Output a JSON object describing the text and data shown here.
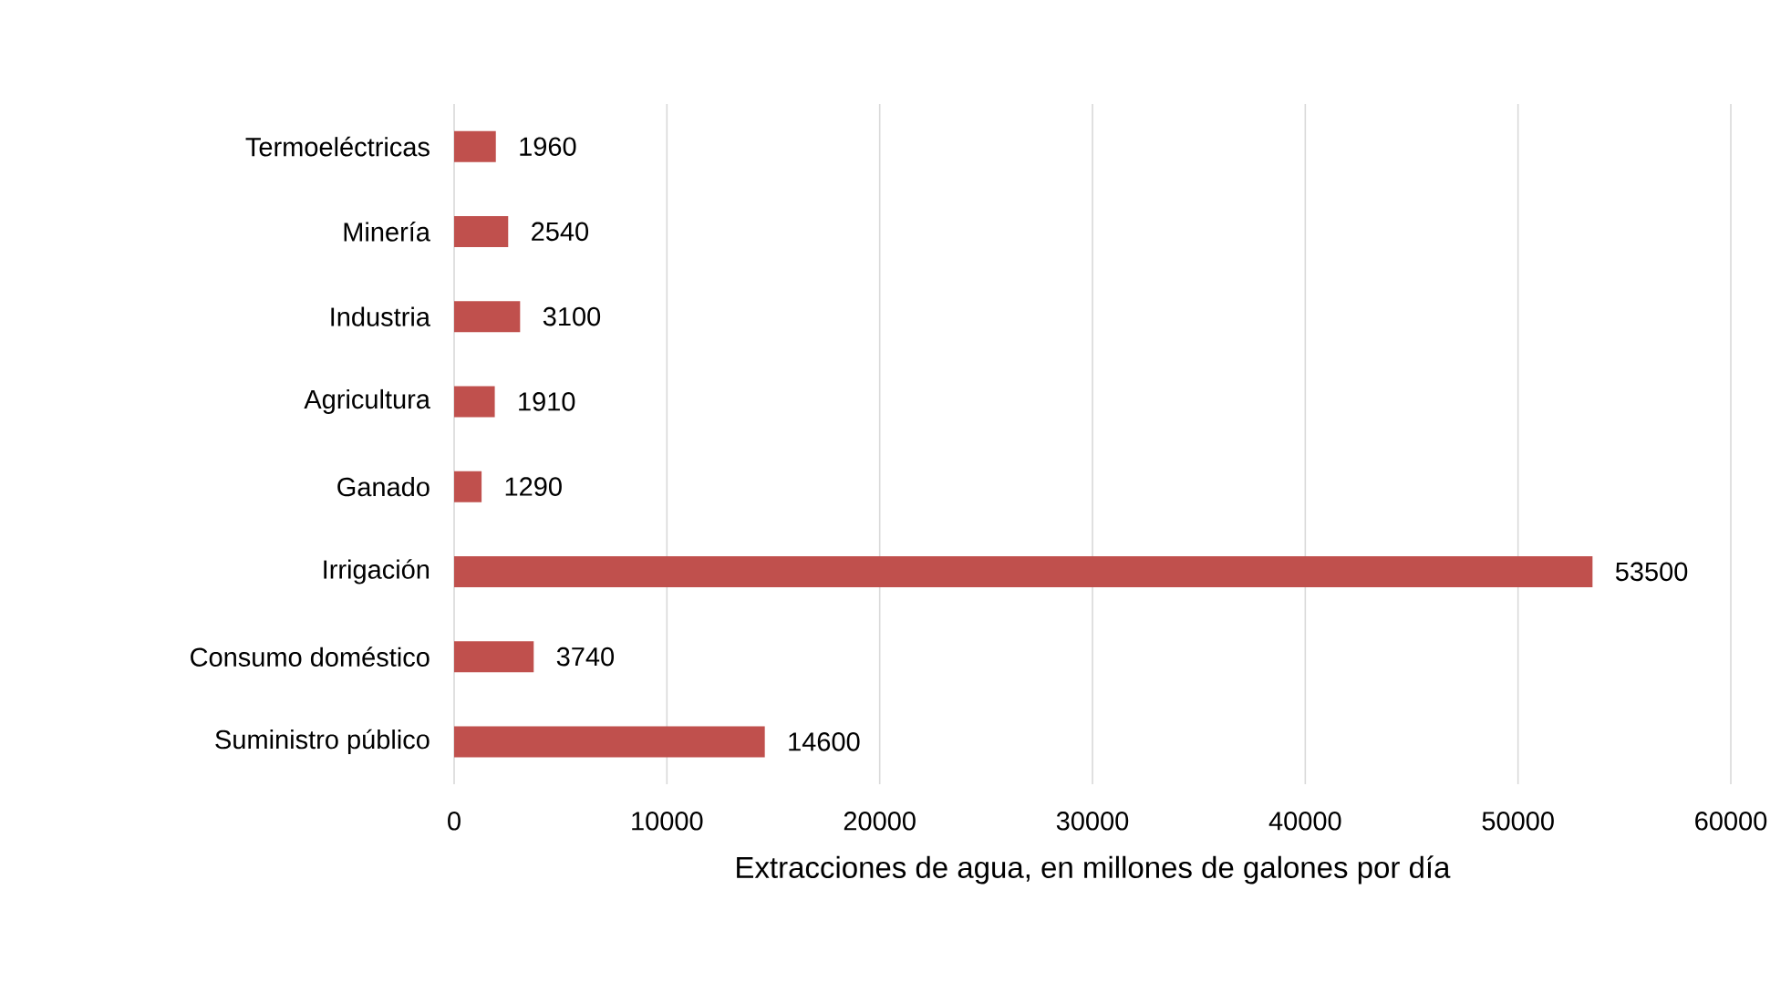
{
  "chart_data": {
    "type": "bar",
    "orientation": "horizontal",
    "xlabel": "Extracciones de agua, en millones de galones por día",
    "categories": [
      "Termoeléctricas",
      "Minería",
      "Industria",
      "Agricultura",
      "Ganado",
      "Irrigación",
      "Consumo doméstico",
      "Suministro público"
    ],
    "values": [
      1960,
      2540,
      3100,
      1910,
      1290,
      53500,
      3740,
      14600
    ],
    "color": "#c0504d",
    "data_labels": true,
    "grid": "x",
    "xlim": [
      0,
      60000
    ],
    "xticks": [
      0,
      10000,
      20000,
      30000,
      40000,
      50000,
      60000
    ]
  }
}
